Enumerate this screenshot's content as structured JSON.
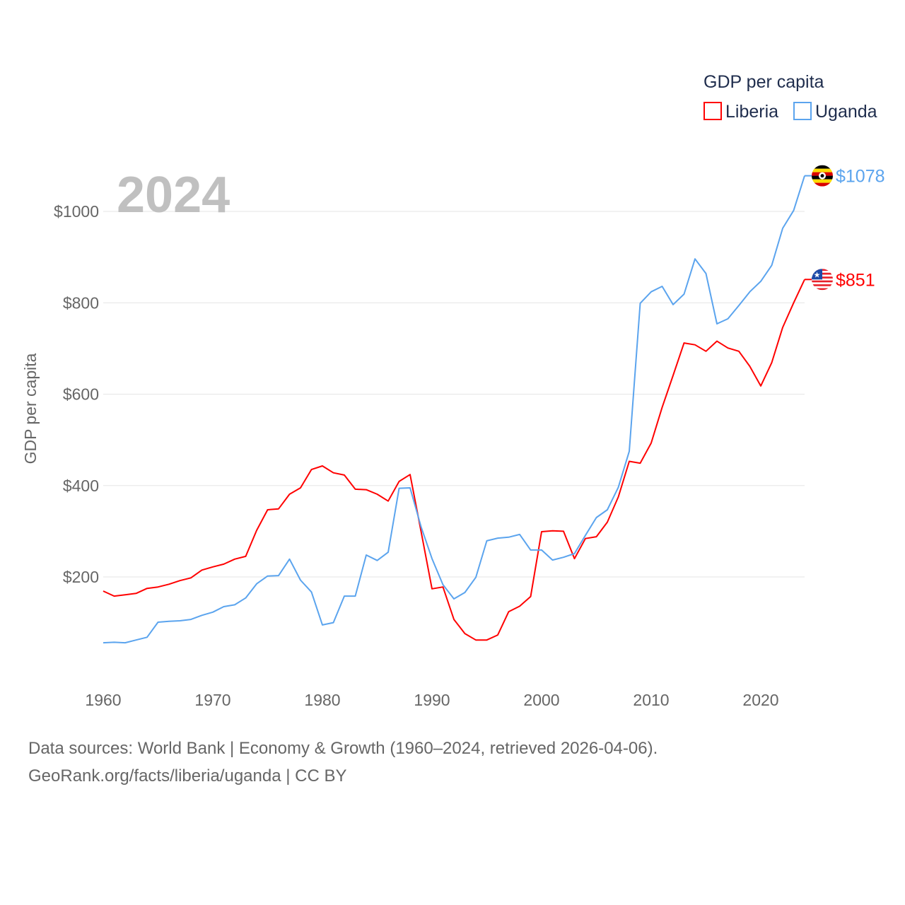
{
  "chart_data": {
    "type": "line",
    "title": "GDP per capita",
    "ylabel": "GDP per capita",
    "xlabel": "",
    "year_label": "2024",
    "xlim": [
      1960,
      2024
    ],
    "ylim": [
      0,
      1100
    ],
    "x_ticks": [
      1960,
      1970,
      1980,
      1990,
      2000,
      2010,
      2020
    ],
    "y_ticks": [
      200,
      400,
      600,
      800,
      1000
    ],
    "y_tick_labels": [
      "$200",
      "$400",
      "$600",
      "$800",
      "$1000"
    ],
    "grid": true,
    "legend_position": "top-right",
    "x": [
      1960,
      1961,
      1962,
      1963,
      1964,
      1965,
      1966,
      1967,
      1968,
      1969,
      1970,
      1971,
      1972,
      1973,
      1974,
      1975,
      1976,
      1977,
      1978,
      1979,
      1980,
      1981,
      1982,
      1983,
      1984,
      1985,
      1986,
      1987,
      1988,
      1989,
      1990,
      1991,
      1992,
      1993,
      1994,
      1995,
      1996,
      1997,
      1998,
      1999,
      2000,
      2001,
      2002,
      2003,
      2004,
      2005,
      2006,
      2007,
      2008,
      2009,
      2010,
      2011,
      2012,
      2013,
      2014,
      2015,
      2016,
      2017,
      2018,
      2019,
      2020,
      2021,
      2022,
      2023,
      2024
    ],
    "series": [
      {
        "name": "Liberia",
        "color": "#ff0000",
        "end_label": "$851",
        "flag": "liberia-flag",
        "values": [
          169,
          158,
          161,
          164,
          175,
          178,
          184,
          192,
          198,
          215,
          222,
          228,
          239,
          245,
          302,
          347,
          349,
          381,
          395,
          435,
          443,
          428,
          423,
          392,
          391,
          381,
          366,
          409,
          424,
          300,
          174,
          178,
          107,
          76,
          62,
          62,
          73,
          124,
          136,
          157,
          299,
          301,
          300,
          240,
          284,
          288,
          320,
          375,
          453,
          449,
          493,
          571,
          641,
          712,
          708,
          694,
          716,
          701,
          694,
          661,
          618,
          669,
          746,
          800,
          851
        ]
      },
      {
        "name": "Uganda",
        "color": "#5ba4ee",
        "end_label": "$1078",
        "flag": "uganda-flag",
        "values": [
          56,
          57,
          56,
          62,
          68,
          101,
          103,
          104,
          107,
          116,
          123,
          135,
          139,
          154,
          185,
          202,
          203,
          239,
          193,
          167,
          95,
          100,
          158,
          158,
          248,
          236,
          254,
          394,
          395,
          310,
          240,
          183,
          152,
          166,
          199,
          279,
          285,
          287,
          293,
          259,
          259,
          237,
          243,
          251,
          291,
          330,
          347,
          396,
          475,
          799,
          824,
          836,
          796,
          819,
          896,
          864,
          754,
          765,
          794,
          824,
          847,
          882,
          963,
          1002,
          1078
        ]
      }
    ]
  },
  "footer": {
    "line1": "Data sources: World Bank | Economy & Growth (1960–2024, retrieved 2026-04-06).",
    "line2": "GeoRank.org/facts/liberia/uganda | CC BY"
  }
}
